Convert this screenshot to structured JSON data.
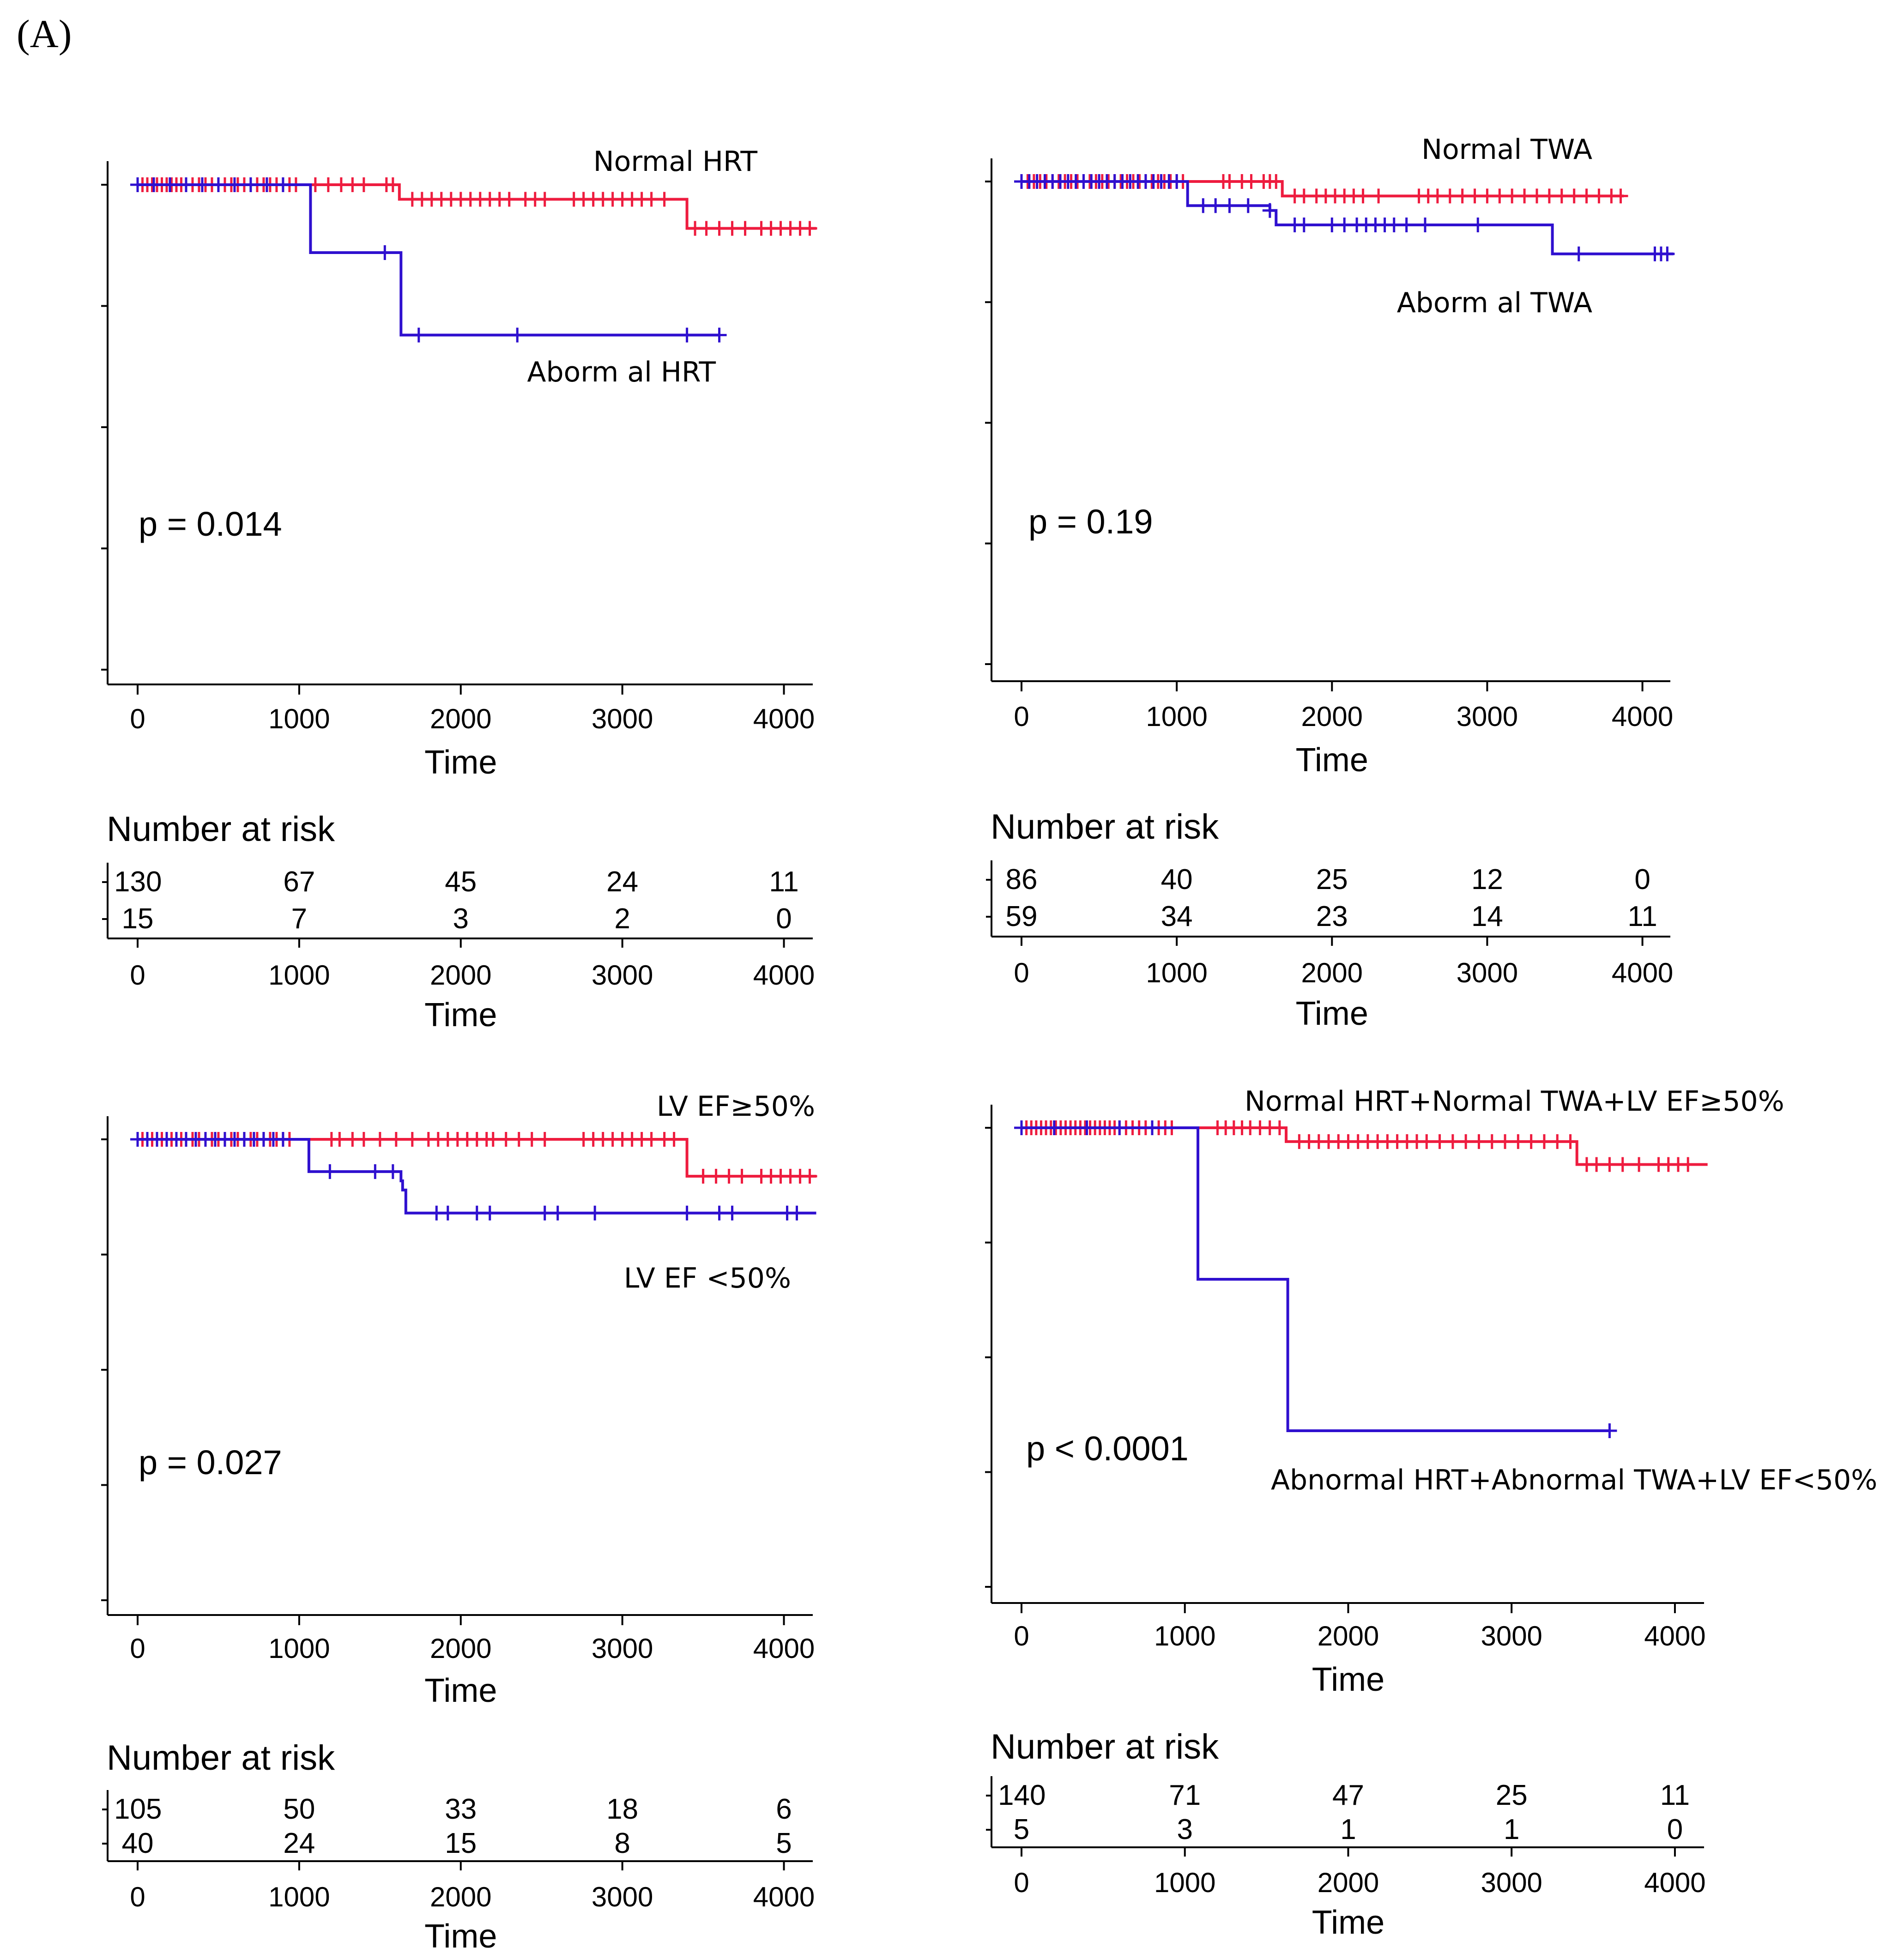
{
  "figure_label": "(A)",
  "x_axis_label": "Time",
  "x_ticks": [
    "0",
    "1000",
    "2000",
    "3000",
    "4000"
  ],
  "risk_table_title": "Number at risk",
  "colors": {
    "group_normal": "#ee1c3f",
    "group_abnormal": "#2f10cf",
    "axis": "#000000"
  },
  "chart_data": [
    {
      "id": "hrt",
      "type": "line",
      "subtype": "kaplan-meier",
      "xlim": [
        0,
        4200
      ],
      "ylim": [
        0,
        1
      ],
      "p_value": "p = 0.014",
      "series": [
        {
          "name": "Normal HRT",
          "color": "#ee1c3f",
          "steps": [
            [
              0,
              1.0
            ],
            [
              1620,
              0.97
            ],
            [
              3400,
              0.91
            ],
            [
              4200,
              0.91
            ]
          ],
          "censor_x": [
            0,
            30,
            60,
            90,
            120,
            150,
            180,
            210,
            240,
            270,
            300,
            340,
            380,
            420,
            460,
            500,
            540,
            580,
            620,
            660,
            700,
            740,
            780,
            820,
            860,
            900,
            940,
            980,
            1100,
            1180,
            1260,
            1330,
            1400,
            1540,
            1580,
            1700,
            1760,
            1820,
            1880,
            1940,
            2000,
            2060,
            2120,
            2180,
            2240,
            2300,
            2400,
            2460,
            2520,
            2700,
            2760,
            2820,
            2880,
            2940,
            3000,
            3060,
            3120,
            3180,
            3260,
            3450,
            3520,
            3600,
            3680,
            3760,
            3860,
            3920,
            3980,
            4040,
            4100,
            4160
          ]
        },
        {
          "name": "Aborm al HRT",
          "label": "Aborm al HRT",
          "color": "#2f10cf",
          "steps": [
            [
              0,
              1.0
            ],
            [
              1070,
              0.86
            ],
            [
              1630,
              0.69
            ],
            [
              3600,
              0.69
            ]
          ],
          "censor_x": [
            0,
            100,
            200,
            300,
            400,
            500,
            600,
            700,
            800,
            900,
            1530,
            1740,
            2350,
            3400,
            3600
          ]
        }
      ],
      "risk_table": [
        {
          "group": "Normal HRT",
          "values": [
            "130",
            "67",
            "45",
            "24",
            "11"
          ]
        },
        {
          "group": "Aborm al HRT",
          "values": [
            "15",
            "7",
            "3",
            "2",
            "0"
          ]
        }
      ]
    },
    {
      "id": "twa",
      "type": "line",
      "subtype": "kaplan-meier",
      "xlim": [
        0,
        4200
      ],
      "ylim": [
        0,
        1
      ],
      "p_value": "p = 0.19",
      "series": [
        {
          "name": "Normal TWA",
          "color": "#ee1c3f",
          "steps": [
            [
              0,
              1.0
            ],
            [
              1680,
              0.97
            ],
            [
              3880,
              0.97
            ]
          ],
          "censor_x": [
            0,
            40,
            80,
            120,
            160,
            200,
            240,
            280,
            320,
            360,
            400,
            440,
            480,
            520,
            560,
            600,
            640,
            680,
            720,
            760,
            800,
            840,
            880,
            920,
            960,
            1000,
            1040,
            1300,
            1340,
            1420,
            1480,
            1560,
            1600,
            1640,
            1760,
            1820,
            1900,
            1960,
            2020,
            2080,
            2140,
            2200,
            2300,
            2560,
            2620,
            2680,
            2760,
            2840,
            2920,
            3000,
            3080,
            3160,
            3240,
            3320,
            3400,
            3480,
            3560,
            3640,
            3720,
            3800,
            3860
          ]
        },
        {
          "name": "Aborm al TWA",
          "label": "Aborm al TWA",
          "color": "#2f10cf",
          "steps": [
            [
              0,
              1.0
            ],
            [
              1070,
              0.95
            ],
            [
              1600,
              0.94
            ],
            [
              1640,
              0.91
            ],
            [
              3400,
              0.91
            ],
            [
              3420,
              0.85
            ],
            [
              4200,
              0.85
            ]
          ],
          "censor_x": [
            0,
            50,
            100,
            150,
            200,
            250,
            300,
            350,
            400,
            450,
            500,
            550,
            600,
            650,
            700,
            750,
            800,
            850,
            900,
            950,
            1000,
            1170,
            1250,
            1340,
            1460,
            1600,
            1760,
            1820,
            2000,
            2080,
            2160,
            2220,
            2280,
            2340,
            2400,
            2480,
            2600,
            2940,
            3590,
            4080,
            4120,
            4160
          ]
        }
      ],
      "risk_table": [
        {
          "group": "Normal TWA",
          "values": [
            "86",
            "40",
            "25",
            "12",
            "0"
          ]
        },
        {
          "group": "Aborm al TWA",
          "values": [
            "59",
            "34",
            "23",
            "14",
            "11"
          ]
        }
      ]
    },
    {
      "id": "ef",
      "type": "line",
      "subtype": "kaplan-meier",
      "xlim": [
        0,
        4200
      ],
      "ylim": [
        0,
        1
      ],
      "p_value": "p = 0.027",
      "series": [
        {
          "name": "LV EF≥50%",
          "color": "#ee1c3f",
          "steps": [
            [
              0,
              1.0
            ],
            [
              3400,
              0.92
            ],
            [
              4200,
              0.92
            ]
          ],
          "censor_x": [
            0,
            30,
            60,
            90,
            120,
            150,
            180,
            210,
            240,
            270,
            300,
            340,
            380,
            420,
            460,
            500,
            540,
            580,
            620,
            660,
            700,
            740,
            780,
            820,
            860,
            900,
            940,
            1200,
            1250,
            1330,
            1400,
            1500,
            1600,
            1700,
            1800,
            1860,
            1920,
            1980,
            2040,
            2100,
            2160,
            2200,
            2280,
            2360,
            2440,
            2520,
            2760,
            2820,
            2880,
            2940,
            3000,
            3060,
            3120,
            3180,
            3260,
            3320,
            3500,
            3580,
            3660,
            3740,
            3860,
            3920,
            3980,
            4040,
            4100,
            4160
          ]
        },
        {
          "name": "LV EF <50%",
          "color": "#2f10cf",
          "steps": [
            [
              0,
              1.0
            ],
            [
              1060,
              0.93
            ],
            [
              1630,
              0.91
            ],
            [
              1640,
              0.89
            ],
            [
              1660,
              0.84
            ],
            [
              4200,
              0.84
            ]
          ],
          "censor_x": [
            0,
            60,
            120,
            180,
            240,
            300,
            360,
            420,
            480,
            540,
            600,
            660,
            720,
            780,
            840,
            900,
            1190,
            1470,
            1580,
            1850,
            1920,
            2100,
            2180,
            2520,
            2600,
            2830,
            3400,
            3600,
            3680,
            4020,
            4080
          ]
        }
      ],
      "risk_table": [
        {
          "group": "LV EF≥50%",
          "values": [
            "105",
            "50",
            "33",
            "18",
            "6"
          ]
        },
        {
          "group": "LV EF <50%",
          "values": [
            "40",
            "24",
            "15",
            "8",
            "5"
          ]
        }
      ]
    },
    {
      "id": "combined",
      "type": "line",
      "subtype": "kaplan-meier",
      "xlim": [
        0,
        4200
      ],
      "ylim": [
        0,
        1
      ],
      "p_value": "p < 0.0001",
      "series": [
        {
          "name": "Normal HRT+Normal TWA+LV EF≥50%",
          "color": "#ee1c3f",
          "steps": [
            [
              0,
              1.0
            ],
            [
              1620,
              0.97
            ],
            [
              3400,
              0.92
            ],
            [
              4200,
              0.92
            ]
          ],
          "censor_x": [
            0,
            30,
            60,
            90,
            120,
            150,
            180,
            210,
            240,
            270,
            300,
            330,
            360,
            390,
            420,
            450,
            480,
            510,
            540,
            570,
            600,
            640,
            680,
            720,
            760,
            800,
            840,
            880,
            920,
            1200,
            1250,
            1300,
            1350,
            1400,
            1460,
            1520,
            1580,
            1700,
            1760,
            1820,
            1880,
            1940,
            2000,
            2060,
            2120,
            2180,
            2240,
            2300,
            2360,
            2420,
            2480,
            2560,
            2640,
            2720,
            2800,
            2880,
            2960,
            3040,
            3120,
            3200,
            3280,
            3360,
            3460,
            3520,
            3600,
            3680,
            3780,
            3900,
            3960,
            4020,
            4080
          ]
        },
        {
          "name": "Abnormal HRT+Abnormal TWA+LV EF<50%",
          "color": "#2f10cf",
          "steps": [
            [
              0,
              1.0
            ],
            [
              1080,
              0.67
            ],
            [
              1630,
              0.34
            ],
            [
              3600,
              0.34
            ]
          ],
          "censor_x": [
            0,
            200,
            400,
            600,
            800,
            3600
          ]
        }
      ],
      "risk_table": [
        {
          "group": "Normal HRT+Normal TWA+LV EF≥50%",
          "values": [
            "140",
            "71",
            "47",
            "25",
            "11"
          ]
        },
        {
          "group": "Abnormal HRT+Abnormal TWA+LV EF<50%",
          "values": [
            "5",
            "3",
            "1",
            "1",
            "0"
          ]
        }
      ]
    }
  ]
}
